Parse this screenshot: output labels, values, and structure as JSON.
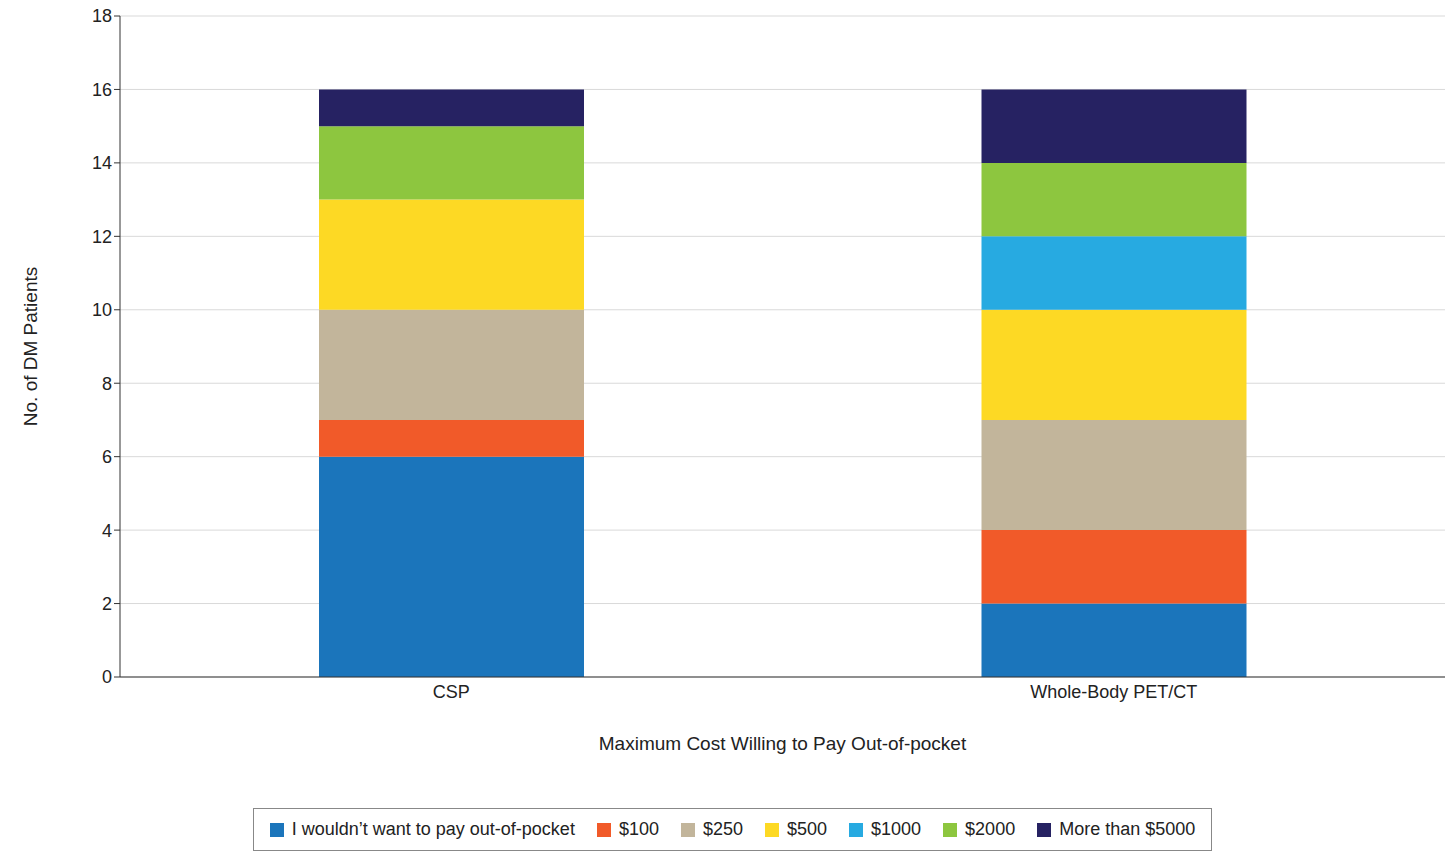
{
  "chart_data": {
    "type": "bar",
    "stacked": true,
    "grid": true,
    "legend": "bottom",
    "x_label": "Maximum Cost Willing to Pay Out-of-pocket",
    "y_label": "No. of DM Patients",
    "categories": [
      "CSP",
      "Whole-Body PET/CT"
    ],
    "ylim": [
      0,
      18
    ],
    "yticks": [
      0,
      2,
      4,
      6,
      8,
      10,
      12,
      14,
      16,
      18
    ],
    "series": [
      {
        "name": "I wouldn’t want to pay out-of-pocket",
        "color": "#1b75bb",
        "values": [
          6,
          2
        ]
      },
      {
        "name": "$100",
        "color": "#f15a29",
        "values": [
          1,
          2
        ]
      },
      {
        "name": "$250",
        "color": "#c2b59b",
        "values": [
          3,
          3
        ]
      },
      {
        "name": "$500",
        "color": "#fdd924",
        "values": [
          3,
          3
        ]
      },
      {
        "name": "$1000",
        "color": "#27aae1",
        "values": [
          0,
          2
        ]
      },
      {
        "name": "$2000",
        "color": "#8dc63f",
        "values": [
          2,
          2
        ]
      },
      {
        "name": "More than $5000",
        "color": "#262262",
        "values": [
          1,
          2
        ]
      }
    ]
  }
}
